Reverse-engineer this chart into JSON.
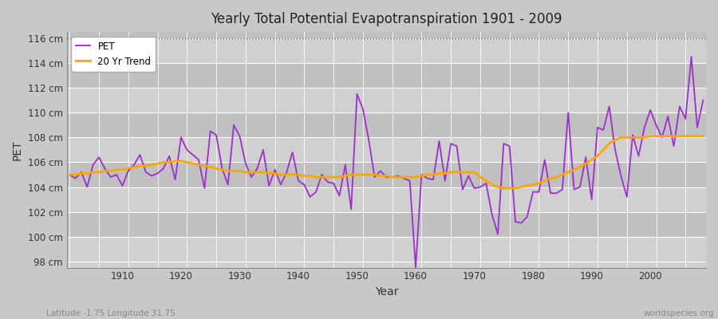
{
  "title": "Yearly Total Potential Evapotranspiration 1901 - 2009",
  "xlabel": "Year",
  "ylabel": "PET",
  "footnote_left": "Latitude -1.75 Longitude 31.75",
  "footnote_right": "worldspecies.org",
  "pet_color": "#9B30CC",
  "trend_color": "#FFA500",
  "bg_color": "#C8C8C8",
  "plot_bg_light": "#D0D0D0",
  "plot_bg_dark": "#C0C0C0",
  "ylim": [
    97.5,
    116.5
  ],
  "yticks": [
    98,
    100,
    102,
    104,
    106,
    108,
    110,
    112,
    114,
    116
  ],
  "xlim": [
    1900.5,
    2009.5
  ],
  "xticks": [
    1910,
    1920,
    1930,
    1940,
    1950,
    1960,
    1970,
    1980,
    1990,
    2000
  ],
  "years": [
    1901,
    1902,
    1903,
    1904,
    1905,
    1906,
    1907,
    1908,
    1909,
    1910,
    1911,
    1912,
    1913,
    1914,
    1915,
    1916,
    1917,
    1918,
    1919,
    1920,
    1921,
    1922,
    1923,
    1924,
    1925,
    1926,
    1927,
    1928,
    1929,
    1930,
    1931,
    1932,
    1933,
    1934,
    1935,
    1936,
    1937,
    1938,
    1939,
    1940,
    1941,
    1942,
    1943,
    1944,
    1945,
    1946,
    1947,
    1948,
    1949,
    1950,
    1951,
    1952,
    1953,
    1954,
    1955,
    1956,
    1957,
    1958,
    1959,
    1960,
    1961,
    1962,
    1963,
    1964,
    1965,
    1966,
    1967,
    1968,
    1969,
    1970,
    1971,
    1972,
    1973,
    1974,
    1975,
    1976,
    1977,
    1978,
    1979,
    1980,
    1981,
    1982,
    1983,
    1984,
    1985,
    1986,
    1987,
    1988,
    1989,
    1990,
    1991,
    1992,
    1993,
    1994,
    1995,
    1996,
    1997,
    1998,
    1999,
    2000,
    2001,
    2002,
    2003,
    2004,
    2005,
    2006,
    2007,
    2008,
    2009
  ],
  "pet_values": [
    105.0,
    104.7,
    105.2,
    104.0,
    105.8,
    106.4,
    105.5,
    104.8,
    105.0,
    104.1,
    105.3,
    105.8,
    106.6,
    105.2,
    104.9,
    105.1,
    105.5,
    106.5,
    104.6,
    108.0,
    107.0,
    106.6,
    106.2,
    103.9,
    108.5,
    108.2,
    105.5,
    104.2,
    109.0,
    108.1,
    105.9,
    104.8,
    105.5,
    107.0,
    104.1,
    105.4,
    104.2,
    105.2,
    106.8,
    104.5,
    104.2,
    103.2,
    103.6,
    105.0,
    104.4,
    104.3,
    103.3,
    105.8,
    102.2,
    111.5,
    110.3,
    107.8,
    104.8,
    105.3,
    104.8,
    104.8,
    104.9,
    104.7,
    104.5,
    97.5,
    105.0,
    104.7,
    104.6,
    107.7,
    104.5,
    107.5,
    107.3,
    103.8,
    104.9,
    103.9,
    104.0,
    104.3,
    101.8,
    100.2,
    107.5,
    107.3,
    101.2,
    101.1,
    101.6,
    103.6,
    103.6,
    106.2,
    103.5,
    103.5,
    103.8,
    110.0,
    103.8,
    104.0,
    106.4,
    103.0,
    108.8,
    108.6,
    110.5,
    107.0,
    104.9,
    103.2,
    108.2,
    106.5,
    108.8,
    110.2,
    109.0,
    108.0,
    109.7,
    107.3,
    110.5,
    109.5,
    114.5,
    108.8,
    111.0
  ],
  "trend_values": [
    105.0,
    105.0,
    105.1,
    105.1,
    105.2,
    105.2,
    105.3,
    105.3,
    105.4,
    105.4,
    105.5,
    105.6,
    105.7,
    105.7,
    105.8,
    105.9,
    106.0,
    106.0,
    106.1,
    106.1,
    106.0,
    105.9,
    105.8,
    105.7,
    105.6,
    105.5,
    105.4,
    105.3,
    105.3,
    105.3,
    105.2,
    105.2,
    105.2,
    105.2,
    105.1,
    105.1,
    105.0,
    105.0,
    105.0,
    105.0,
    104.9,
    104.9,
    104.8,
    104.8,
    104.8,
    104.8,
    104.8,
    104.9,
    105.0,
    105.0,
    105.0,
    105.0,
    105.0,
    104.9,
    104.9,
    104.8,
    104.8,
    104.8,
    104.8,
    104.8,
    104.9,
    105.0,
    105.0,
    105.1,
    105.1,
    105.2,
    105.2,
    105.2,
    105.2,
    105.2,
    104.8,
    104.5,
    104.2,
    104.0,
    103.9,
    103.9,
    103.9,
    104.0,
    104.1,
    104.2,
    104.3,
    104.5,
    104.7,
    104.8,
    105.0,
    105.2,
    105.4,
    105.6,
    105.9,
    106.2,
    106.5,
    107.0,
    107.5,
    107.8,
    108.0,
    108.0,
    108.0,
    108.0,
    108.0,
    108.1,
    108.1,
    108.1,
    108.1,
    108.1,
    108.1,
    108.1,
    108.1,
    108.1,
    108.1
  ]
}
